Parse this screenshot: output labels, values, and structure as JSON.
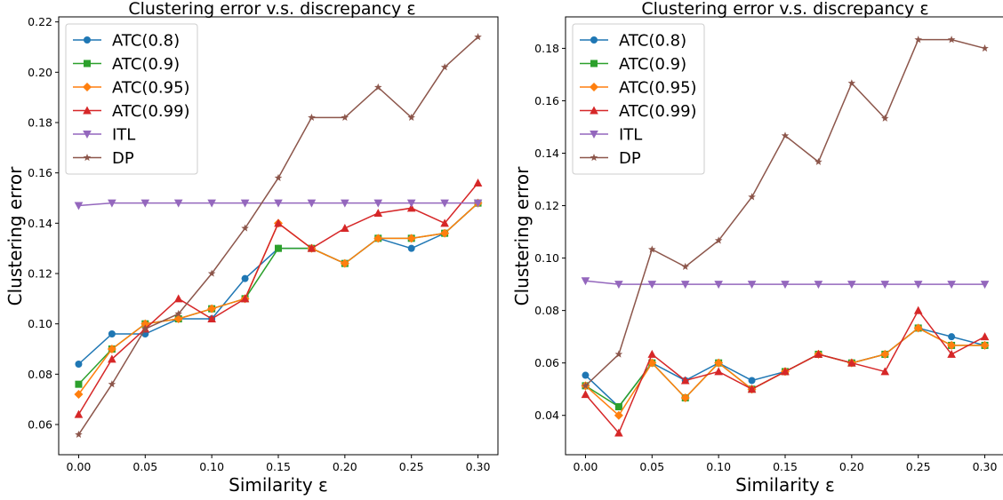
{
  "colors": {
    "ATC(0.8)": "#1f77b4",
    "ATC(0.9)": "#2ca02c",
    "ATC(0.95)": "#ff7f0e",
    "ATC(0.99)": "#d62728",
    "ITL": "#9467bd",
    "DP": "#8c564b"
  },
  "chart_data": [
    {
      "type": "line",
      "title": "Clustering error v.s. discrepancy ε",
      "xlabel": "Similarity ε",
      "ylabel": "Clustering error",
      "xlim": [
        -0.015,
        0.315
      ],
      "ylim": [
        0.048,
        0.222
      ],
      "xticks": [
        "0.00",
        "0.05",
        "0.10",
        "0.15",
        "0.20",
        "0.25",
        "0.30"
      ],
      "yticks": [
        "0.06",
        "0.08",
        "0.10",
        "0.12",
        "0.14",
        "0.16",
        "0.18",
        "0.20",
        "0.22"
      ],
      "legend_position": "top-left",
      "x": [
        0,
        0.025,
        0.05,
        0.075,
        0.1,
        0.125,
        0.15,
        0.175,
        0.2,
        0.225,
        0.25,
        0.275,
        0.3
      ],
      "series": [
        {
          "name": "ATC(0.8)",
          "marker": "circle",
          "values": [
            0.084,
            0.096,
            0.096,
            0.102,
            0.102,
            0.118,
            0.13,
            0.13,
            0.124,
            0.134,
            0.13,
            0.136,
            0.148
          ]
        },
        {
          "name": "ATC(0.9)",
          "marker": "square",
          "values": [
            0.076,
            0.09,
            0.1,
            0.102,
            0.106,
            0.11,
            0.13,
            0.13,
            0.124,
            0.134,
            0.134,
            0.136,
            0.148
          ]
        },
        {
          "name": "ATC(0.95)",
          "marker": "diamond",
          "values": [
            0.072,
            0.09,
            0.1,
            0.102,
            0.106,
            0.11,
            0.14,
            0.13,
            0.124,
            0.134,
            0.134,
            0.136,
            0.148
          ]
        },
        {
          "name": "ATC(0.99)",
          "marker": "triangle-up",
          "values": [
            0.064,
            0.086,
            0.098,
            0.11,
            0.102,
            0.11,
            0.14,
            0.13,
            0.138,
            0.144,
            0.146,
            0.14,
            0.156
          ]
        },
        {
          "name": "ITL",
          "marker": "triangle-down",
          "values": [
            0.147,
            0.148,
            0.148,
            0.148,
            0.148,
            0.148,
            0.148,
            0.148,
            0.148,
            0.148,
            0.148,
            0.148,
            0.148
          ]
        },
        {
          "name": "DP",
          "marker": "star",
          "values": [
            0.056,
            0.076,
            0.098,
            0.104,
            0.12,
            0.138,
            0.158,
            0.182,
            0.182,
            0.194,
            0.182,
            0.202,
            0.214
          ]
        }
      ]
    },
    {
      "type": "line",
      "title": "Clustering error v.s. discrepancy ε",
      "xlabel": "Similarity ε",
      "ylabel": "Clustering error",
      "xlim": [
        -0.015,
        0.315
      ],
      "ylim": [
        0.025,
        0.192
      ],
      "xticks": [
        "0.00",
        "0.05",
        "0.10",
        "0.15",
        "0.20",
        "0.25",
        "0.30"
      ],
      "yticks": [
        "0.04",
        "0.06",
        "0.08",
        "0.10",
        "0.12",
        "0.14",
        "0.16",
        "0.18"
      ],
      "legend_position": "top-left",
      "x": [
        0,
        0.025,
        0.05,
        0.075,
        0.1,
        0.125,
        0.15,
        0.175,
        0.2,
        0.225,
        0.25,
        0.275,
        0.3
      ],
      "series": [
        {
          "name": "ATC(0.8)",
          "marker": "circle",
          "values": [
            0.0553,
            0.0433,
            0.06,
            0.0533,
            0.06,
            0.0533,
            0.0567,
            0.0633,
            0.06,
            0.0633,
            0.0733,
            0.07,
            0.0667
          ]
        },
        {
          "name": "ATC(0.9)",
          "marker": "square",
          "values": [
            0.0513,
            0.0433,
            0.06,
            0.0467,
            0.06,
            0.05,
            0.0567,
            0.0633,
            0.06,
            0.0633,
            0.0733,
            0.0667,
            0.0667
          ]
        },
        {
          "name": "ATC(0.95)",
          "marker": "diamond",
          "values": [
            0.0513,
            0.04,
            0.06,
            0.0467,
            0.06,
            0.05,
            0.0567,
            0.0633,
            0.06,
            0.0633,
            0.0733,
            0.0667,
            0.0667
          ]
        },
        {
          "name": "ATC(0.99)",
          "marker": "triangle-up",
          "values": [
            0.048,
            0.0333,
            0.0633,
            0.0533,
            0.0567,
            0.05,
            0.0567,
            0.0633,
            0.06,
            0.0567,
            0.08,
            0.0633,
            0.07
          ]
        },
        {
          "name": "ITL",
          "marker": "triangle-down",
          "values": [
            0.0913,
            0.09,
            0.09,
            0.09,
            0.09,
            0.09,
            0.09,
            0.09,
            0.09,
            0.09,
            0.09,
            0.09,
            0.09
          ]
        },
        {
          "name": "DP",
          "marker": "star",
          "values": [
            0.0513,
            0.0633,
            0.1033,
            0.0967,
            0.1067,
            0.1233,
            0.1467,
            0.1367,
            0.1667,
            0.1533,
            0.1833,
            0.1833,
            0.18
          ]
        }
      ]
    }
  ]
}
